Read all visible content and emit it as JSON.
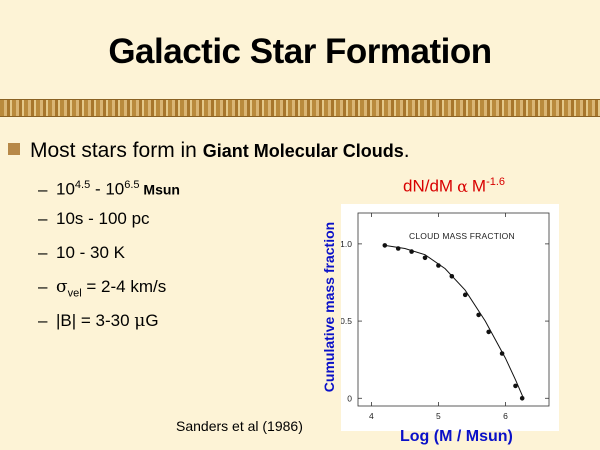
{
  "slide": {
    "title": "Galactic Star Formation",
    "bullet_prefix": "Most stars form in ",
    "bullet_bold": "Giant Molecular Clouds",
    "bullet_suffix": ".",
    "mass": {
      "a_base": "10",
      "a_exp": "4.5",
      "sep": " - ",
      "b_base": "10",
      "b_exp": "6.5",
      "unit": " Msun"
    },
    "size": "10s - 100 pc",
    "temperature": "10 - 30 K",
    "sigma": {
      "symbol": "σ",
      "sub": "vel",
      "value": " = 2-4 km/s"
    },
    "field": {
      "prefix": "|B| = 3-30 ",
      "mu": "μ",
      "unit": "G"
    },
    "power_law": {
      "lhs": "dN/dM",
      "prop": "α",
      "rhs": "M",
      "exp": "-1.6"
    },
    "citation": "Sanders et al (1986)"
  },
  "chart_data": {
    "type": "scatter",
    "title": "CLOUD MASS FRACTION",
    "xlabel": "Log (M / Msun)",
    "ylabel": "Cumulative mass fraction",
    "xlim": [
      3.8,
      6.65
    ],
    "ylim": [
      -0.05,
      1.2
    ],
    "xticks": [
      4,
      5,
      6
    ],
    "yticks": [
      0,
      0.5,
      1.0
    ],
    "ytick_labels": [
      "0",
      "0.5",
      "1.0"
    ],
    "points": [
      {
        "x": 4.2,
        "y": 0.99
      },
      {
        "x": 4.4,
        "y": 0.97
      },
      {
        "x": 4.6,
        "y": 0.95
      },
      {
        "x": 4.8,
        "y": 0.91
      },
      {
        "x": 5.0,
        "y": 0.86
      },
      {
        "x": 5.2,
        "y": 0.79
      },
      {
        "x": 5.4,
        "y": 0.67
      },
      {
        "x": 5.6,
        "y": 0.54
      },
      {
        "x": 5.75,
        "y": 0.43
      },
      {
        "x": 5.95,
        "y": 0.29
      },
      {
        "x": 6.15,
        "y": 0.08
      },
      {
        "x": 6.25,
        "y": 0.0
      }
    ],
    "curve": [
      {
        "x": 4.2,
        "y": 0.99
      },
      {
        "x": 4.5,
        "y": 0.97
      },
      {
        "x": 4.8,
        "y": 0.93
      },
      {
        "x": 5.1,
        "y": 0.84
      },
      {
        "x": 5.4,
        "y": 0.7
      },
      {
        "x": 5.7,
        "y": 0.5
      },
      {
        "x": 6.0,
        "y": 0.26
      },
      {
        "x": 6.15,
        "y": 0.12
      },
      {
        "x": 6.27,
        "y": 0.0
      }
    ]
  }
}
